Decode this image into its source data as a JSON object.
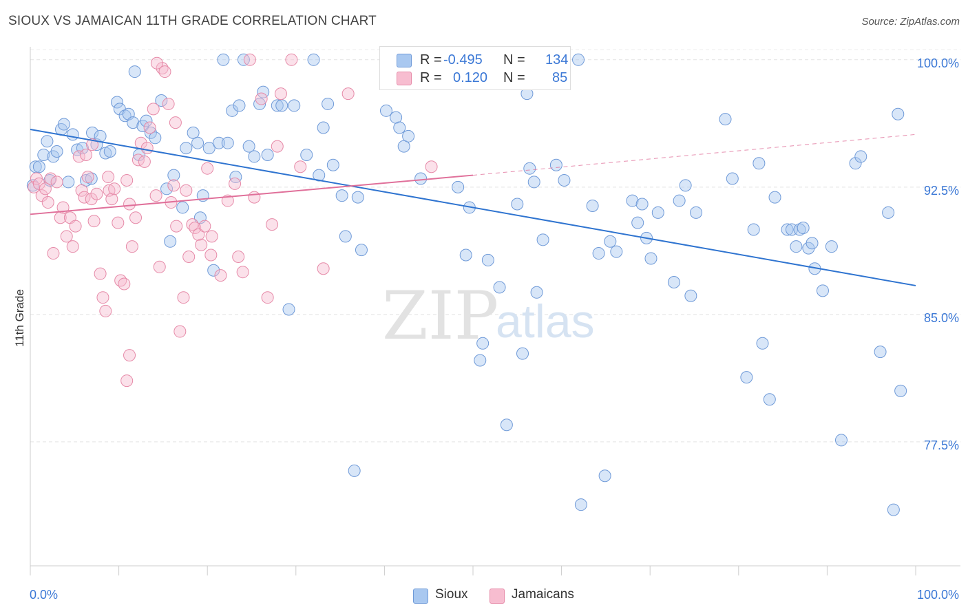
{
  "header": {
    "title": "SIOUX VS JAMAICAN 11TH GRADE CORRELATION CHART",
    "source": "Source: ZipAtlas.com"
  },
  "watermark": {
    "zip": "ZIP",
    "atlas": "atlas"
  },
  "legend": {
    "rows": [
      {
        "r_label": "R =",
        "r_value": "-0.495",
        "n_label": "N =",
        "n_value": "134",
        "color": "#a9c8f0",
        "border": "#6f9ad8"
      },
      {
        "r_label": "R =",
        "r_value": "0.120",
        "n_label": "N =",
        "n_value": "85",
        "color": "#f7bdd0",
        "border": "#e68aa8"
      }
    ]
  },
  "bottom_legend": {
    "items": [
      {
        "label": "Sioux",
        "color": "#a9c8f0",
        "border": "#6f9ad8"
      },
      {
        "label": "Jamaicans",
        "color": "#f7bdd0",
        "border": "#e68aa8"
      }
    ]
  },
  "chart_data": {
    "type": "scatter",
    "title": "SIOUX VS JAMAICAN 11TH GRADE CORRELATION CHART",
    "xlabel": "",
    "ylabel": "11th Grade",
    "xlim": [
      0,
      100
    ],
    "ylim": [
      70.2,
      100.6
    ],
    "x_tick_labels": [
      "0.0%",
      "100.0%"
    ],
    "y_ticks": [
      77.5,
      85.0,
      92.5,
      100.0
    ],
    "y_tick_labels": [
      "77.5%",
      "85.0%",
      "92.5%",
      "100.0%"
    ],
    "grid": true,
    "legend_position": "top-center",
    "colors": {
      "sioux": "#6f9ad8",
      "sioux_fill": "#a9c8f0",
      "sioux_line": "#2f74d0",
      "jamaican": "#e68aa8",
      "jamaican_fill": "#f7bdd0",
      "jamaican_line": "#e0709a",
      "tick_text": "#3b78d6"
    },
    "series": [
      {
        "name": "Sioux",
        "trend": {
          "x": [
            0,
            100
          ],
          "y": [
            95.9,
            86.7
          ]
        },
        "points": [
          [
            0.3,
            92.6
          ],
          [
            0.6,
            93.7
          ],
          [
            1.0,
            93.7
          ],
          [
            1.5,
            94.4
          ],
          [
            1.9,
            95.2
          ],
          [
            2.2,
            92.9
          ],
          [
            2.6,
            94.3
          ],
          [
            3.0,
            94.6
          ],
          [
            3.5,
            95.9
          ],
          [
            3.8,
            96.2
          ],
          [
            4.3,
            92.8
          ],
          [
            4.8,
            95.6
          ],
          [
            5.3,
            94.7
          ],
          [
            5.9,
            94.8
          ],
          [
            6.3,
            92.9
          ],
          [
            7.0,
            95.7
          ],
          [
            7.5,
            95.0
          ],
          [
            7.9,
            95.5
          ],
          [
            8.5,
            94.5
          ],
          [
            9.8,
            97.5
          ],
          [
            10.1,
            97.1
          ],
          [
            10.7,
            96.7
          ],
          [
            11.1,
            96.8
          ],
          [
            11.6,
            96.3
          ],
          [
            11.8,
            99.3
          ],
          [
            12.3,
            94.4
          ],
          [
            12.7,
            96.1
          ],
          [
            13.1,
            96.4
          ],
          [
            13.6,
            95.7
          ],
          [
            14.1,
            95.4
          ],
          [
            14.8,
            97.6
          ],
          [
            15.4,
            92.4
          ],
          [
            15.8,
            89.3
          ],
          [
            16.2,
            93.2
          ],
          [
            17.2,
            91.3
          ],
          [
            17.6,
            94.8
          ],
          [
            18.4,
            95.7
          ],
          [
            18.9,
            95.1
          ],
          [
            19.2,
            90.7
          ],
          [
            19.5,
            92.0
          ],
          [
            20.2,
            94.8
          ],
          [
            20.7,
            87.6
          ],
          [
            21.3,
            95.1
          ],
          [
            21.8,
            100.0
          ],
          [
            22.3,
            95.1
          ],
          [
            22.8,
            97.0
          ],
          [
            23.2,
            93.1
          ],
          [
            24.1,
            100.0
          ],
          [
            24.7,
            94.9
          ],
          [
            25.3,
            94.3
          ],
          [
            25.9,
            97.4
          ],
          [
            26.3,
            98.1
          ],
          [
            26.8,
            94.4
          ],
          [
            27.9,
            97.3
          ],
          [
            28.4,
            97.3
          ],
          [
            29.2,
            85.3
          ],
          [
            29.8,
            97.3
          ],
          [
            31.2,
            94.4
          ],
          [
            32.0,
            100.0
          ],
          [
            32.6,
            93.2
          ],
          [
            33.1,
            96.0
          ],
          [
            33.6,
            97.4
          ],
          [
            34.2,
            93.8
          ],
          [
            35.2,
            92.0
          ],
          [
            35.6,
            89.6
          ],
          [
            36.6,
            75.8
          ],
          [
            37.4,
            88.8
          ],
          [
            40.2,
            97.0
          ],
          [
            41.3,
            96.6
          ],
          [
            41.7,
            96.0
          ],
          [
            42.2,
            94.9
          ],
          [
            42.7,
            95.5
          ],
          [
            44.1,
            93.0
          ],
          [
            47.7,
            100.0
          ],
          [
            48.3,
            92.5
          ],
          [
            49.2,
            88.5
          ],
          [
            49.6,
            91.3
          ],
          [
            50.8,
            82.3
          ],
          [
            51.1,
            83.3
          ],
          [
            51.7,
            88.2
          ],
          [
            53.0,
            86.6
          ],
          [
            53.8,
            78.5
          ],
          [
            55.0,
            91.5
          ],
          [
            55.6,
            82.7
          ],
          [
            56.1,
            98.0
          ],
          [
            56.4,
            93.6
          ],
          [
            56.9,
            92.8
          ],
          [
            57.2,
            86.3
          ],
          [
            57.9,
            89.4
          ],
          [
            59.4,
            93.8
          ],
          [
            60.3,
            92.9
          ],
          [
            61.9,
            100.0
          ],
          [
            62.2,
            73.8
          ],
          [
            63.5,
            91.4
          ],
          [
            64.2,
            88.6
          ],
          [
            64.9,
            75.5
          ],
          [
            65.5,
            89.3
          ],
          [
            66.2,
            88.7
          ],
          [
            68.0,
            91.7
          ],
          [
            68.6,
            90.4
          ],
          [
            69.1,
            91.5
          ],
          [
            69.6,
            89.5
          ],
          [
            70.1,
            88.3
          ],
          [
            70.9,
            91.0
          ],
          [
            72.7,
            86.9
          ],
          [
            73.3,
            91.7
          ],
          [
            74.0,
            92.6
          ],
          [
            74.6,
            86.1
          ],
          [
            75.2,
            91.0
          ],
          [
            78.5,
            96.5
          ],
          [
            79.3,
            93.0
          ],
          [
            80.9,
            81.3
          ],
          [
            81.7,
            90.0
          ],
          [
            82.3,
            93.9
          ],
          [
            82.7,
            83.3
          ],
          [
            83.5,
            80.0
          ],
          [
            84.1,
            91.9
          ],
          [
            85.5,
            90.0
          ],
          [
            86.0,
            90.0
          ],
          [
            86.5,
            89.0
          ],
          [
            86.9,
            90.0
          ],
          [
            87.3,
            90.1
          ],
          [
            87.9,
            88.9
          ],
          [
            88.3,
            89.2
          ],
          [
            88.6,
            87.7
          ],
          [
            89.5,
            86.4
          ],
          [
            90.5,
            89.0
          ],
          [
            91.6,
            77.6
          ],
          [
            93.2,
            93.9
          ],
          [
            93.8,
            94.3
          ],
          [
            96.0,
            82.8
          ],
          [
            96.9,
            91.0
          ],
          [
            97.5,
            73.5
          ],
          [
            98.0,
            96.8
          ],
          [
            98.3,
            80.5
          ],
          [
            6.9,
            93.0
          ],
          [
            9.0,
            94.6
          ],
          [
            23.6,
            97.3
          ],
          [
            37.0,
            91.9
          ]
        ]
      },
      {
        "name": "Jamaicans",
        "trend": {
          "x": [
            0,
            50
          ],
          "y": [
            90.9,
            93.2
          ]
        },
        "trend_extension": {
          "x": [
            50,
            100
          ],
          "y": [
            93.2,
            95.6
          ]
        },
        "points": [
          [
            0.4,
            92.5
          ],
          [
            0.7,
            93.0
          ],
          [
            1.0,
            92.7
          ],
          [
            1.3,
            92.0
          ],
          [
            1.7,
            92.4
          ],
          [
            2.0,
            91.6
          ],
          [
            2.3,
            93.0
          ],
          [
            2.6,
            88.6
          ],
          [
            3.0,
            92.8
          ],
          [
            3.4,
            90.7
          ],
          [
            3.7,
            91.3
          ],
          [
            4.1,
            89.6
          ],
          [
            4.5,
            90.7
          ],
          [
            4.8,
            89.0
          ],
          [
            5.1,
            90.2
          ],
          [
            5.5,
            94.3
          ],
          [
            5.8,
            92.3
          ],
          [
            6.1,
            91.9
          ],
          [
            6.5,
            93.1
          ],
          [
            6.9,
            91.8
          ],
          [
            7.2,
            90.5
          ],
          [
            7.5,
            92.1
          ],
          [
            7.9,
            87.4
          ],
          [
            8.2,
            86.0
          ],
          [
            8.5,
            85.2
          ],
          [
            8.9,
            92.3
          ],
          [
            9.2,
            91.8
          ],
          [
            9.5,
            92.4
          ],
          [
            9.9,
            90.4
          ],
          [
            10.2,
            87.0
          ],
          [
            10.6,
            86.8
          ],
          [
            10.9,
            92.9
          ],
          [
            11.2,
            91.5
          ],
          [
            11.5,
            89.0
          ],
          [
            11.9,
            90.7
          ],
          [
            12.2,
            94.1
          ],
          [
            12.5,
            95.1
          ],
          [
            12.9,
            94.0
          ],
          [
            13.2,
            94.8
          ],
          [
            13.5,
            96.0
          ],
          [
            13.9,
            97.1
          ],
          [
            14.2,
            92.0
          ],
          [
            14.6,
            87.8
          ],
          [
            14.9,
            99.5
          ],
          [
            15.2,
            99.3
          ],
          [
            15.6,
            97.4
          ],
          [
            15.9,
            91.6
          ],
          [
            16.2,
            92.6
          ],
          [
            16.5,
            90.2
          ],
          [
            16.9,
            84.0
          ],
          [
            17.3,
            86.0
          ],
          [
            17.6,
            92.3
          ],
          [
            17.9,
            88.4
          ],
          [
            18.3,
            90.3
          ],
          [
            18.6,
            90.1
          ],
          [
            19.0,
            89.7
          ],
          [
            19.3,
            89.1
          ],
          [
            19.7,
            90.2
          ],
          [
            20.0,
            93.6
          ],
          [
            20.4,
            88.5
          ],
          [
            21.5,
            87.3
          ],
          [
            22.3,
            91.7
          ],
          [
            23.1,
            92.7
          ],
          [
            23.5,
            88.4
          ],
          [
            24.0,
            87.5
          ],
          [
            24.8,
            100.0
          ],
          [
            25.3,
            91.9
          ],
          [
            26.1,
            97.7
          ],
          [
            26.8,
            86.0
          ],
          [
            27.3,
            90.3
          ],
          [
            27.9,
            94.9
          ],
          [
            28.3,
            98.0
          ],
          [
            29.5,
            100.0
          ],
          [
            30.5,
            93.7
          ],
          [
            33.1,
            87.7
          ],
          [
            35.9,
            98.0
          ],
          [
            45.3,
            93.7
          ],
          [
            6.3,
            94.4
          ],
          [
            8.8,
            93.1
          ],
          [
            10.9,
            81.1
          ],
          [
            11.2,
            82.6
          ],
          [
            14.3,
            99.8
          ],
          [
            16.4,
            96.3
          ],
          [
            20.5,
            89.6
          ],
          [
            7.0,
            95.0
          ]
        ]
      }
    ]
  }
}
